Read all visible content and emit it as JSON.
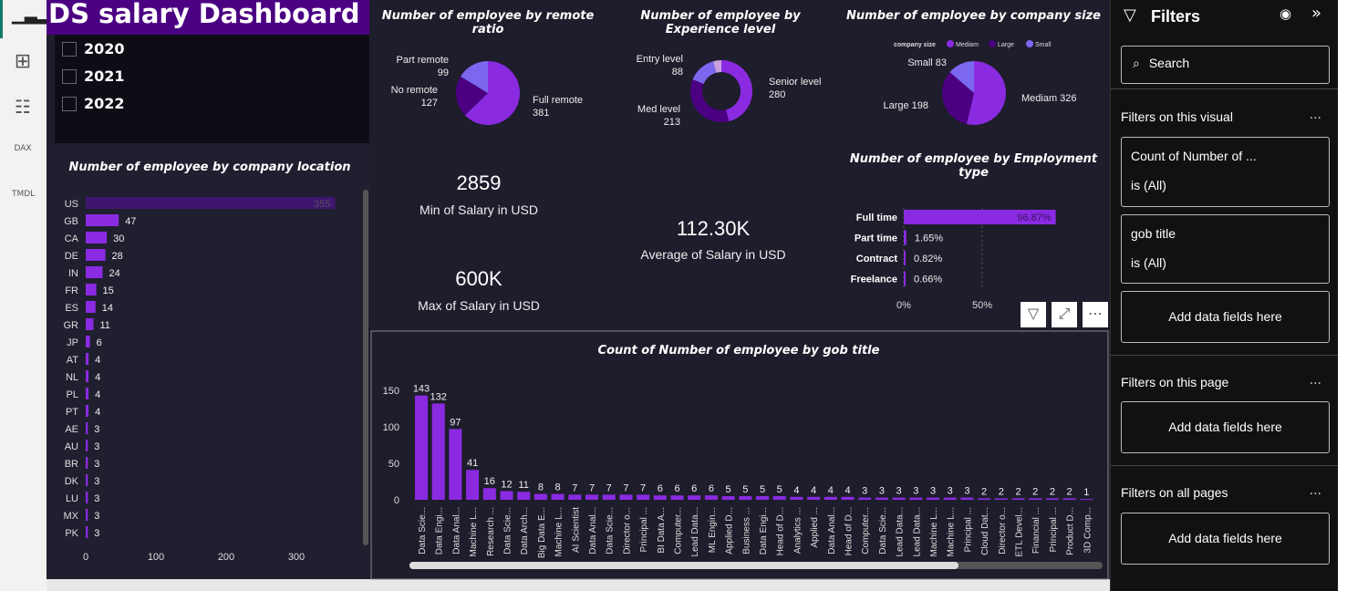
{
  "title": "DS salary Dashboard",
  "years": [
    "2020",
    "2021",
    "2022"
  ],
  "rail": {
    "dax": "DAX",
    "tmdl": "TMDL"
  },
  "kpis": {
    "min_value": "2859",
    "min_label": "Min of Salary in USD",
    "max_value": "600K",
    "max_label": "Max of Salary in USD",
    "avg_value": "112.30K",
    "avg_label": "Average of Salary in USD"
  },
  "colors": {
    "primary": "#8a2be2",
    "dark": "#4b0082",
    "light": "#7b68ee",
    "bg": "#1e1d2c"
  },
  "chart_data": [
    {
      "type": "pie",
      "title": "Number of employee by remote ratio",
      "slices": [
        {
          "label": "Full remote",
          "value": 381
        },
        {
          "label": "No remote",
          "value": 127
        },
        {
          "label": "Part remote",
          "value": 99
        }
      ]
    },
    {
      "type": "pie",
      "title": "Number of employee by Experience level",
      "donut": true,
      "slices": [
        {
          "label": "Senior level",
          "value": 280
        },
        {
          "label": "Med level",
          "value": 213
        },
        {
          "label": "Entry level",
          "value": 88
        },
        {
          "label": "",
          "value": 26
        }
      ]
    },
    {
      "type": "pie",
      "title": "Number of employee by company size",
      "legend_title": "company size",
      "legend": "top",
      "slices": [
        {
          "label": "Mediam",
          "value": 326
        },
        {
          "label": "Large",
          "value": 198
        },
        {
          "label": "Small",
          "value": 83
        }
      ]
    },
    {
      "type": "bar",
      "orientation": "horizontal",
      "title": "Number of employee by company location",
      "categories": [
        "US",
        "GB",
        "CA",
        "DE",
        "IN",
        "FR",
        "ES",
        "GR",
        "JP",
        "AT",
        "NL",
        "PL",
        "PT",
        "AE",
        "AU",
        "BR",
        "DK",
        "LU",
        "MX",
        "PK"
      ],
      "values": [
        355,
        47,
        30,
        28,
        24,
        15,
        14,
        11,
        6,
        4,
        4,
        4,
        4,
        3,
        3,
        3,
        3,
        3,
        3,
        3
      ],
      "xticks": [
        "0",
        "100",
        "200",
        "300"
      ],
      "xlim": [
        0,
        360
      ]
    },
    {
      "type": "bar",
      "orientation": "horizontal",
      "title": "Number of employee by Employment type",
      "categories": [
        "Full time",
        "Part time",
        "Contract",
        "Freelance"
      ],
      "values": [
        96.87,
        1.65,
        0.82,
        0.66
      ],
      "labels": [
        "96.87%",
        "1.65%",
        "0.82%",
        "0.66%"
      ],
      "xticks": [
        "0%",
        "50%"
      ],
      "xlim": [
        0,
        100
      ]
    },
    {
      "type": "bar",
      "title": "Count of Number of employee by gob title",
      "categories": [
        "Data Scie...",
        "Data Engi...",
        "Data Anal...",
        "Machine L...",
        "Research ...",
        "Data Scie...",
        "Data Arch...",
        "Big Data E...",
        "Machine L...",
        "AI Scientist",
        "Data Anal...",
        "Data Scie...",
        "Director o...",
        "Principal ...",
        "BI Data A...",
        "Computer...",
        "Lead Data...",
        "ML Engin...",
        "Applied D...",
        "Business ...",
        "Data Engi...",
        "Head of D...",
        "Analytics ...",
        "Applied ...",
        "Data Anal...",
        "Head of D...",
        "Computer...",
        "Data Scie...",
        "Lead Data...",
        "Lead Data...",
        "Machine L...",
        "Machine L...",
        "Principal ...",
        "Cloud Dat...",
        "Director o...",
        "ETL Devel...",
        "Financial ...",
        "Principal ...",
        "Product D...",
        "3D Comp..."
      ],
      "values": [
        143,
        132,
        97,
        41,
        16,
        12,
        11,
        8,
        8,
        7,
        7,
        7,
        7,
        7,
        6,
        6,
        6,
        6,
        5,
        5,
        5,
        5,
        4,
        4,
        4,
        4,
        3,
        3,
        3,
        3,
        3,
        3,
        3,
        2,
        2,
        2,
        2,
        2,
        2,
        1
      ],
      "yticks": [
        "0",
        "50",
        "100",
        "150"
      ],
      "ylim": [
        0,
        150
      ]
    }
  ],
  "filters": {
    "title": "Filters",
    "search_placeholder": "Search",
    "on_visual": "Filters on this visual",
    "f1_name": "Count of Number of ...",
    "f1_state": "is (All)",
    "f2_name": "gob title",
    "f2_state": "is (All)",
    "add": "Add data fields here",
    "on_page": "Filters on this page",
    "on_all": "Filters on all pages",
    "more": "..."
  }
}
